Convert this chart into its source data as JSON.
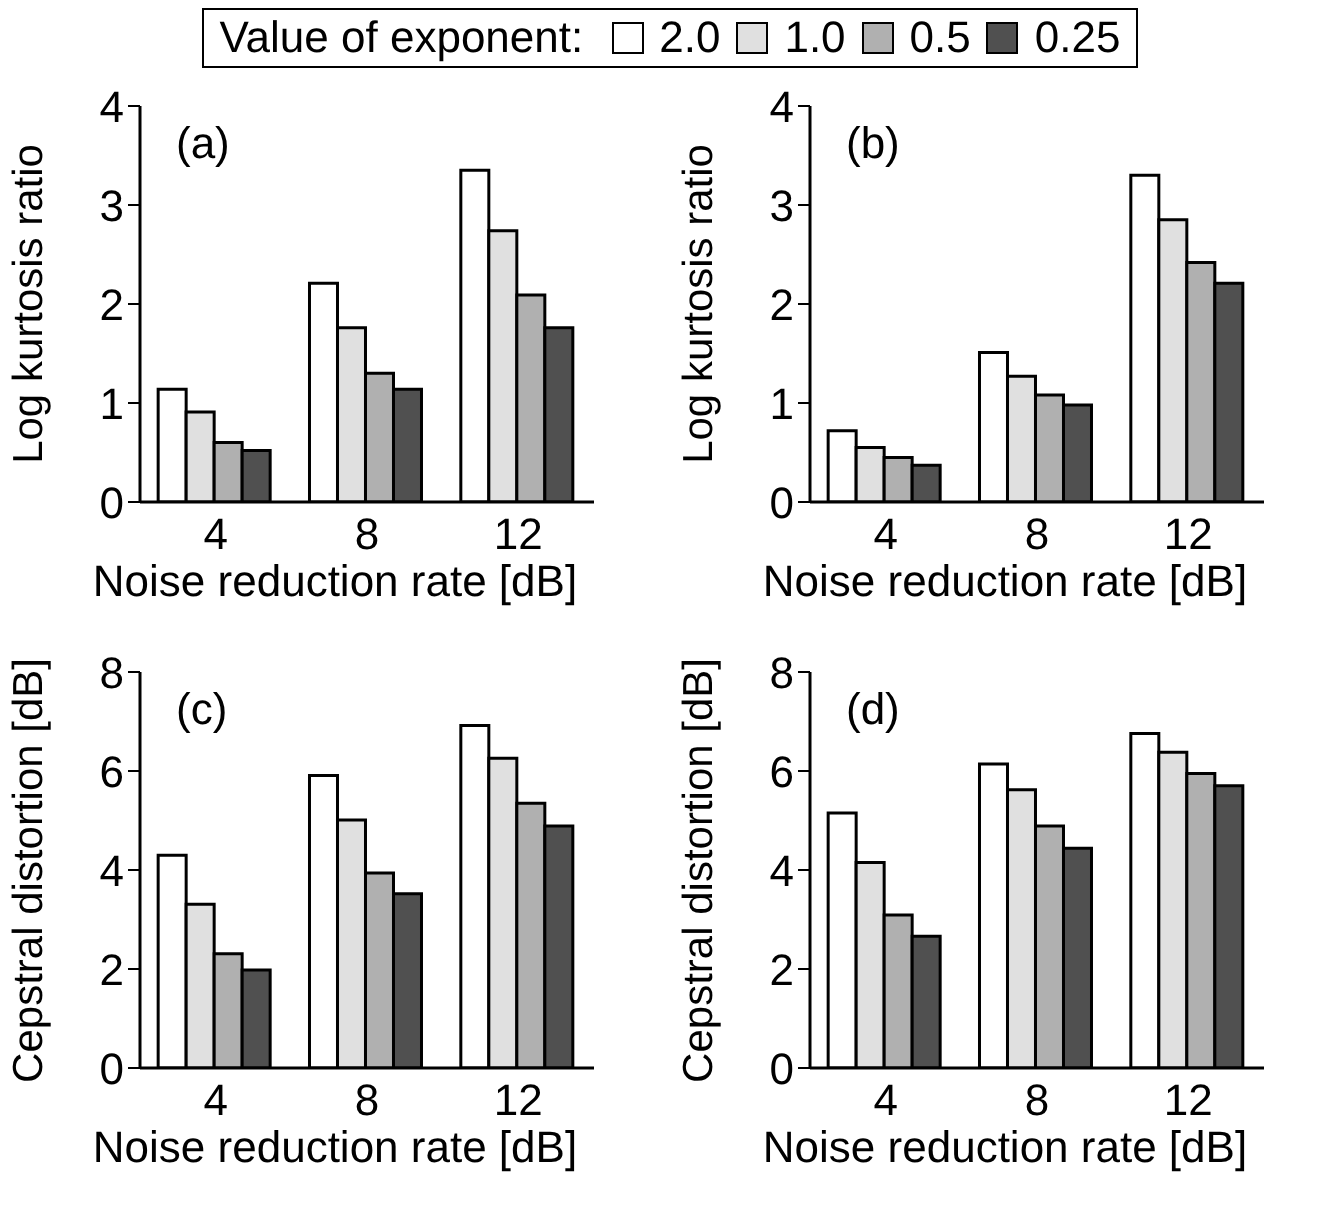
{
  "chart_data": [
    {
      "type": "bar",
      "legend_title": "Value of exponent:",
      "legend": "top",
      "annotations": [
        "(a)"
      ],
      "xlabel": "Noise reduction rate [dB]",
      "ylabel": "Log kurtosis ratio",
      "categories": [
        "4",
        "8",
        "12"
      ],
      "ylim": [
        0,
        4
      ],
      "yticks": [
        0,
        1,
        2,
        3,
        4
      ],
      "series": [
        {
          "name": "2.0",
          "color": "#ffffff",
          "values": [
            1.14,
            2.21,
            3.35
          ]
        },
        {
          "name": "1.0",
          "color": "#e0e0e0",
          "values": [
            0.91,
            1.76,
            2.74
          ]
        },
        {
          "name": "0.5",
          "color": "#b0b0b0",
          "values": [
            0.6,
            1.3,
            2.09
          ]
        },
        {
          "name": "0.25",
          "color": "#505050",
          "values": [
            0.52,
            1.14,
            1.76
          ]
        }
      ]
    },
    {
      "type": "bar",
      "annotations": [
        "(b)"
      ],
      "xlabel": "Noise reduction rate [dB]",
      "ylabel": "Log kurtosis ratio",
      "categories": [
        "4",
        "8",
        "12"
      ],
      "ylim": [
        0,
        4
      ],
      "yticks": [
        0,
        1,
        2,
        3,
        4
      ],
      "series": [
        {
          "name": "2.0",
          "color": "#ffffff",
          "values": [
            0.72,
            1.51,
            3.3
          ]
        },
        {
          "name": "1.0",
          "color": "#e0e0e0",
          "values": [
            0.55,
            1.27,
            2.85
          ]
        },
        {
          "name": "0.5",
          "color": "#b0b0b0",
          "values": [
            0.45,
            1.08,
            2.42
          ]
        },
        {
          "name": "0.25",
          "color": "#505050",
          "values": [
            0.37,
            0.98,
            2.21
          ]
        }
      ]
    },
    {
      "type": "bar",
      "annotations": [
        "(c)"
      ],
      "xlabel": "Noise reduction rate [dB]",
      "ylabel": "Cepstral distortion [dB]",
      "categories": [
        "4",
        "8",
        "12"
      ],
      "ylim": [
        0,
        8
      ],
      "yticks": [
        0,
        2,
        4,
        6,
        8
      ],
      "series": [
        {
          "name": "2.0",
          "color": "#ffffff",
          "values": [
            4.3,
            5.91,
            6.92
          ]
        },
        {
          "name": "1.0",
          "color": "#e0e0e0",
          "values": [
            3.31,
            5.01,
            6.26
          ]
        },
        {
          "name": "0.5",
          "color": "#b0b0b0",
          "values": [
            2.31,
            3.94,
            5.35
          ]
        },
        {
          "name": "0.25",
          "color": "#505050",
          "values": [
            1.98,
            3.52,
            4.89
          ]
        }
      ]
    },
    {
      "type": "bar",
      "annotations": [
        "(d)"
      ],
      "xlabel": "Noise reduction rate [dB]",
      "ylabel": "Cepstral distortion [dB]",
      "categories": [
        "4",
        "8",
        "12"
      ],
      "ylim": [
        0,
        8
      ],
      "yticks": [
        0,
        2,
        4,
        6,
        8
      ],
      "series": [
        {
          "name": "2.0",
          "color": "#ffffff",
          "values": [
            5.15,
            6.14,
            6.76
          ]
        },
        {
          "name": "1.0",
          "color": "#e0e0e0",
          "values": [
            4.15,
            5.62,
            6.38
          ]
        },
        {
          "name": "0.5",
          "color": "#b0b0b0",
          "values": [
            3.09,
            4.89,
            5.95
          ]
        },
        {
          "name": "0.25",
          "color": "#505050",
          "values": [
            2.66,
            4.44,
            5.7
          ]
        }
      ]
    }
  ]
}
